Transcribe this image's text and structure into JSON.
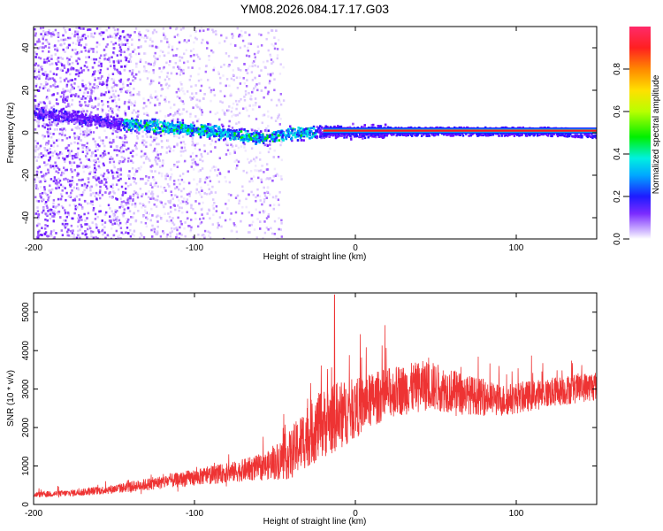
{
  "title": "YM08.2026.084.17.17.G03",
  "chart_data": [
    {
      "type": "heatmap",
      "xlabel": "Height of straight line (km)",
      "ylabel": "Frequency (Hz)",
      "xlim": [
        -200,
        150
      ],
      "ylim": [
        -50,
        50
      ],
      "xticks": [
        -200,
        -100,
        0,
        100
      ],
      "yticks": [
        -40,
        -20,
        0,
        20,
        40
      ],
      "colorbar": {
        "label": "Normalized spectral amplitude",
        "range": [
          0.0,
          1.0
        ],
        "ticks": [
          "0.0",
          "0.2",
          "0.4",
          "0.6",
          "0.8"
        ],
        "tick_values": [
          0.0,
          0.2,
          0.4,
          0.6,
          0.8
        ],
        "colormap": "rainbow"
      },
      "features": {
        "noise_x_range": [
          -200,
          -50
        ],
        "trend_points": [
          [
            -200,
            10
          ],
          [
            -150,
            5
          ],
          [
            -100,
            2
          ],
          [
            -60,
            -2
          ],
          [
            -40,
            0
          ],
          [
            -20,
            1
          ],
          [
            0,
            1
          ],
          [
            50,
            1
          ],
          [
            120,
            1
          ],
          [
            150,
            0
          ]
        ],
        "strong_line_x_range": [
          -20,
          150
        ],
        "strong_line_frequency": 1
      }
    },
    {
      "type": "line",
      "xlabel": "Height of straight line (km)",
      "ylabel": "SNR (10 * v/v)",
      "xlim": [
        -200,
        150
      ],
      "ylim": [
        0,
        5500
      ],
      "xticks": [
        -200,
        -100,
        0,
        100
      ],
      "yticks": [
        0,
        1000,
        2000,
        3000,
        4000,
        5000
      ],
      "color": "#ee3333",
      "envelope": [
        {
          "x": -200,
          "mean": 250,
          "spread": 120
        },
        {
          "x": -175,
          "mean": 300,
          "spread": 150
        },
        {
          "x": -150,
          "mean": 400,
          "spread": 200
        },
        {
          "x": -125,
          "mean": 550,
          "spread": 280
        },
        {
          "x": -100,
          "mean": 700,
          "spread": 350
        },
        {
          "x": -75,
          "mean": 850,
          "spread": 450
        },
        {
          "x": -55,
          "mean": 1000,
          "spread": 600
        },
        {
          "x": -40,
          "mean": 1300,
          "spread": 1100
        },
        {
          "x": -30,
          "mean": 1800,
          "spread": 1400
        },
        {
          "x": -20,
          "mean": 2100,
          "spread": 1500
        },
        {
          "x": -10,
          "mean": 2300,
          "spread": 1500
        },
        {
          "x": 0,
          "mean": 2500,
          "spread": 1300
        },
        {
          "x": 20,
          "mean": 2900,
          "spread": 1100
        },
        {
          "x": 45,
          "mean": 3100,
          "spread": 1100
        },
        {
          "x": 65,
          "mean": 2900,
          "spread": 900
        },
        {
          "x": 90,
          "mean": 2700,
          "spread": 700
        },
        {
          "x": 120,
          "mean": 2900,
          "spread": 650
        },
        {
          "x": 150,
          "mean": 3100,
          "spread": 650
        }
      ],
      "peak": {
        "x": -13,
        "y": 5450
      }
    }
  ]
}
